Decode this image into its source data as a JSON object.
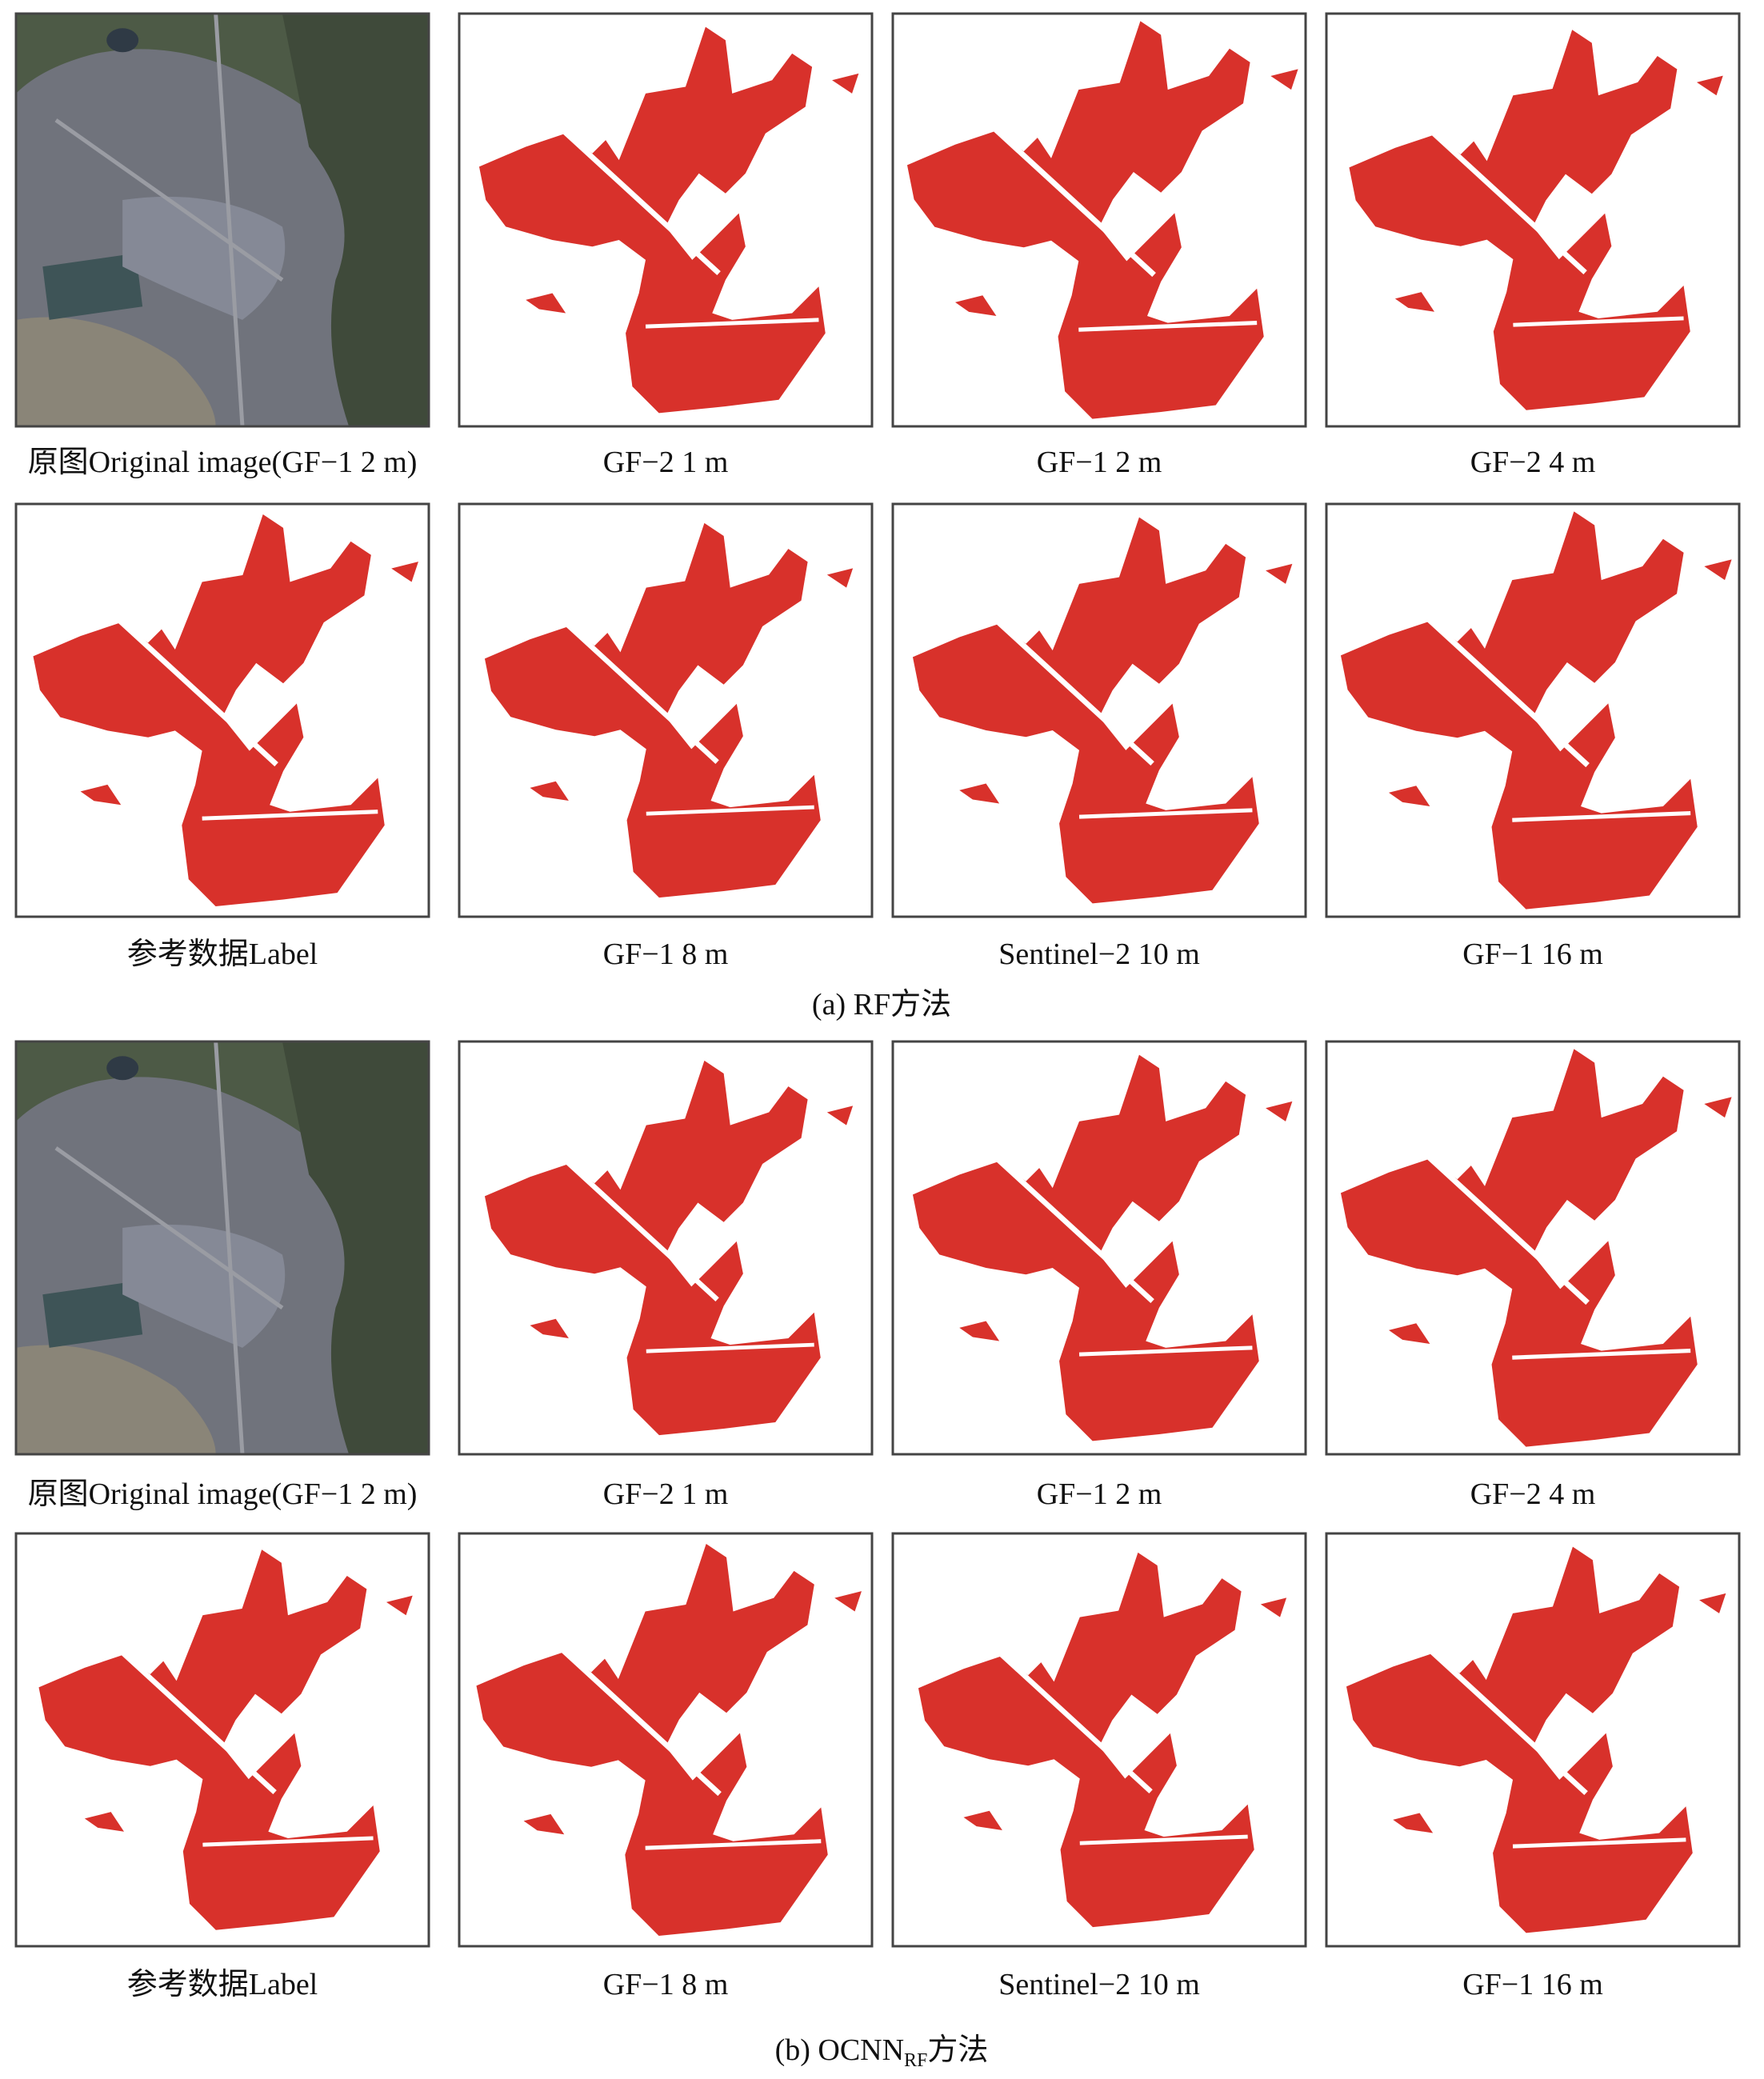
{
  "sections": [
    {
      "panels": [
        {
          "caption": "原图Original image(GF−1 2 m)"
        },
        {
          "caption": "GF−2 1 m"
        },
        {
          "caption": "GF−1 2 m"
        },
        {
          "caption": "GF−2 4 m"
        },
        {
          "caption": "参考数据Label"
        },
        {
          "caption": "GF−1 8 m"
        },
        {
          "caption": "Sentinel−2 10 m"
        },
        {
          "caption": "GF−1 16 m"
        }
      ],
      "caption": "(a) RF方法"
    },
    {
      "panels": [
        {
          "caption": "原图Original image(GF−1 2 m)"
        },
        {
          "caption": "GF−2 1 m"
        },
        {
          "caption": "GF−1 2 m"
        },
        {
          "caption": "GF−2 4 m"
        },
        {
          "caption": "参考数据Label"
        },
        {
          "caption": "GF−1 8 m"
        },
        {
          "caption": "Sentinel−2 10 m"
        },
        {
          "caption": "GF−1 16 m"
        }
      ],
      "caption": {
        "prefix": "(b) OCNN",
        "subscript": "RF",
        "suffix": "方法"
      }
    }
  ]
}
